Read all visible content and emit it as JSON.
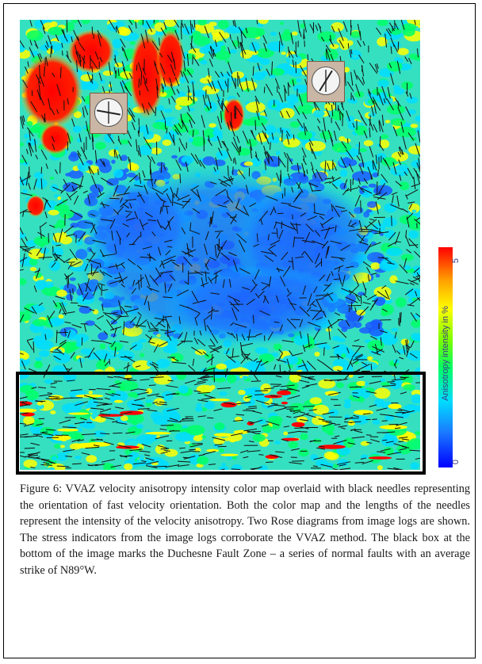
{
  "figure": {
    "caption": "Figure 6: VVAZ velocity anisotropy intensity color map overlaid with black needles representing the orientation of fast velocity orientation. Both the color map and the lengths of the needles represent the intensity of the velocity anisotropy. Two Rose diagrams from image logs are shown. The stress indicators from the image logs corroborate the VVAZ method. The black box at the bottom of the image marks the Duchesne Fault Zone – a series of normal faults with an average strike of N89°W."
  },
  "colorbar": {
    "title": "Anisotropy intensity in %",
    "max_label": "5",
    "min_label": "0",
    "colors": [
      "#ff0000",
      "#ffa000",
      "#ffff00",
      "#7cff00",
      "#00ff66",
      "#00dcff",
      "#1a7aff",
      "#0000ff"
    ]
  },
  "map_palette": {
    "high": "#ff0000",
    "upper": "#ffff00",
    "mid": "#00ff66",
    "lower": "#00dcff",
    "low": "#1a5cff"
  },
  "rose_diagrams": [
    {
      "name": "rose-diagram-1",
      "icon": "rose-diagram-icon"
    },
    {
      "name": "rose-diagram-2",
      "icon": "rose-diagram-icon"
    }
  ]
}
